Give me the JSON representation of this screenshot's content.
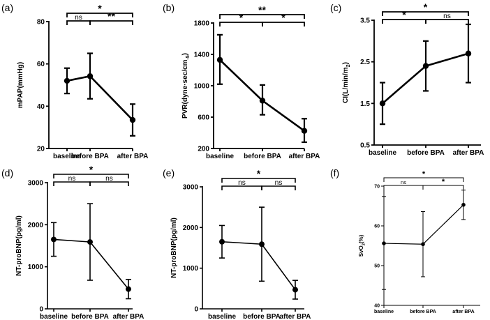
{
  "figure": {
    "panel_count": 6
  },
  "chart_data": [
    {
      "panel": "(a)",
      "type": "line",
      "categories": [
        "baseline",
        "before BPA",
        "after BPA"
      ],
      "values": [
        52,
        54.2,
        33.5
      ],
      "err_low": [
        46,
        43.5,
        26
      ],
      "err_high": [
        58,
        65,
        41
      ],
      "ylabel": "mPAP(mmHg)",
      "ylabel_sub": "",
      "ylim": [
        20,
        80
      ],
      "yticks": [
        20,
        40,
        60,
        80
      ],
      "comparisons": [
        {
          "from": 0,
          "to": 2,
          "label": "*",
          "level": 1
        },
        {
          "from": 0,
          "to": 1,
          "label": "ns",
          "level": 0
        },
        {
          "from": 1,
          "to": 2,
          "label": "**",
          "level": 0
        }
      ],
      "style": "bold"
    },
    {
      "panel": "(b)",
      "type": "line",
      "categories": [
        "baseline",
        "before BPA",
        "after BPA"
      ],
      "values": [
        1330,
        810,
        425
      ],
      "err_low": [
        1020,
        630,
        280
      ],
      "err_high": [
        1650,
        1010,
        580
      ],
      "ylabel": "PVR(dyne·sec/cm",
      "ylabel_sub": "-5",
      "ylabel_end": ")",
      "ylim": [
        200,
        1800
      ],
      "yticks": [
        200,
        600,
        1000,
        1400,
        1800
      ],
      "comparisons": [
        {
          "from": 0,
          "to": 2,
          "label": "**",
          "level": 1
        },
        {
          "from": 0,
          "to": 1,
          "label": "*",
          "level": 0
        },
        {
          "from": 1,
          "to": 2,
          "label": "*",
          "level": 0
        }
      ],
      "style": "bold"
    },
    {
      "panel": "(c)",
      "type": "line",
      "categories": [
        "baseline",
        "before BPA",
        "after BPA"
      ],
      "values": [
        1.5,
        2.4,
        2.7
      ],
      "err_low": [
        1.0,
        1.8,
        2.0
      ],
      "err_high": [
        2.0,
        3.0,
        3.4
      ],
      "ylabel": "CI(L/min/m",
      "ylabel_sub": "2",
      "ylabel_end": ")",
      "ylim": [
        0.5,
        3.5
      ],
      "yticks": [
        0.5,
        1.5,
        2.5,
        3.5
      ],
      "comparisons": [
        {
          "from": 0,
          "to": 2,
          "label": "*",
          "level": 1
        },
        {
          "from": 0,
          "to": 1,
          "label": "*",
          "level": 0
        },
        {
          "from": 1,
          "to": 2,
          "label": "ns",
          "level": 0
        }
      ],
      "style": "bold"
    },
    {
      "panel": "(d)",
      "type": "line",
      "categories": [
        "baseline",
        "before BPA",
        "after BPA"
      ],
      "values": [
        1650,
        1590,
        470
      ],
      "err_low": [
        1250,
        680,
        240
      ],
      "err_high": [
        2050,
        2500,
        700
      ],
      "ylabel": "NT-proBNP(pg/ml)",
      "ylabel_sub": "",
      "ylim": [
        0,
        3000
      ],
      "yticks": [
        0,
        1000,
        2000,
        3000
      ],
      "comparisons": [
        {
          "from": 0,
          "to": 2,
          "label": "*",
          "level": 1
        },
        {
          "from": 0,
          "to": 1,
          "label": "ns",
          "level": 0
        },
        {
          "from": 1,
          "to": 2,
          "label": "ns",
          "level": 0
        }
      ],
      "style": "plain"
    },
    {
      "panel": "(e)",
      "type": "line",
      "categories": [
        "baseline",
        "before BPA",
        "after BPA"
      ],
      "values": [
        1650,
        1590,
        470
      ],
      "err_low": [
        1250,
        680,
        240
      ],
      "err_high": [
        2050,
        2500,
        700
      ],
      "ylabel": "NT-proBNP(pg/ml)",
      "ylabel_sub": "",
      "ylim": [
        0,
        3000
      ],
      "yticks": [
        0,
        1000,
        2000,
        3000
      ],
      "comparisons": [
        {
          "from": 0,
          "to": 2,
          "label": "*",
          "level": 1
        },
        {
          "from": 0,
          "to": 1,
          "label": "ns",
          "level": 0
        },
        {
          "from": 1,
          "to": 2,
          "label": "ns",
          "level": 0
        }
      ],
      "style": "plain"
    },
    {
      "panel": "(f)",
      "type": "line",
      "categories": [
        "baseline",
        "before BPA",
        "after BPA"
      ],
      "values": [
        55.6,
        55.4,
        65.3
      ],
      "err_low": [
        44,
        47.2,
        61.6
      ],
      "err_high": [
        67.4,
        63.6,
        69
      ],
      "ylabel": "SvO",
      "ylabel_sub": "2",
      "ylabel_end": "(%)",
      "ylim": [
        40,
        70
      ],
      "yticks": [
        40,
        50,
        60,
        70
      ],
      "comparisons": [
        {
          "from": 0,
          "to": 2,
          "label": "*",
          "level": 1
        },
        {
          "from": 0,
          "to": 1,
          "label": "ns",
          "level": 0
        },
        {
          "from": 1,
          "to": 2,
          "label": "*",
          "level": 0
        }
      ],
      "style": "thin"
    }
  ]
}
